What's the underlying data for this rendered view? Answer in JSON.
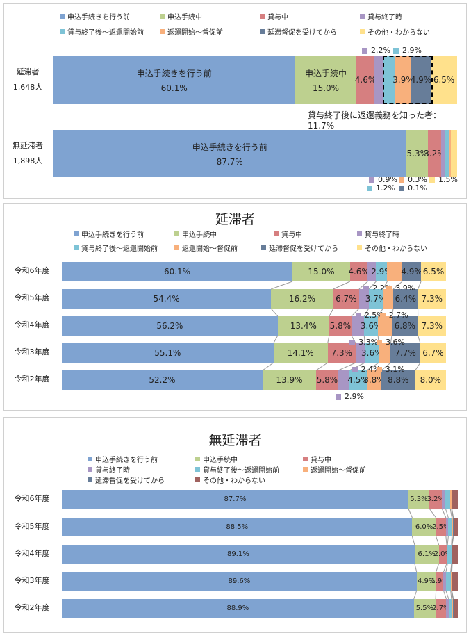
{
  "colors": [
    "#7fa3d1",
    "#bdd08f",
    "#d67f80",
    "#a896c4",
    "#7ec3d6",
    "#f8b07c",
    "#677d99",
    "#ffe18c",
    "#a0625f"
  ],
  "legend": [
    "申込手続きを行う前",
    "申込手続中",
    "貸与中",
    "貸与終了時",
    "貸与終了後～返還開始前",
    "返還開始～督促前",
    "延滞督促を受けてから",
    "その他・わからない"
  ],
  "chart_data": [
    {
      "type": "bar",
      "orientation": "horizontal-stacked-100",
      "categories": [
        "延滞者 1,648人",
        "無延滞者 1,898人"
      ],
      "category_lines": [
        [
          "延滞者",
          "1,648人"
        ],
        [
          "無延滞者",
          "1,898人"
        ]
      ],
      "series_names": [
        "申込手続きを行う前",
        "申込手続中",
        "貸与中",
        "貸与終了時",
        "貸与終了後～返還開始前",
        "返還開始～督促前",
        "延滞督促を受けてから",
        "その他・わからない"
      ],
      "values": [
        [
          60.1,
          15.0,
          4.6,
          2.2,
          2.9,
          3.9,
          4.9,
          6.5
        ],
        [
          87.7,
          5.3,
          3.2,
          0.9,
          1.2,
          0.3,
          0.1,
          1.5
        ]
      ],
      "annotation": "貸与終了後に返還義務を知った者：11.7%"
    },
    {
      "type": "bar",
      "orientation": "horizontal-stacked-100",
      "title": "延滞者",
      "categories": [
        "令和6年度",
        "令和5年度",
        "令和4年度",
        "令和3年度",
        "令和2年度"
      ],
      "series_names": [
        "申込手続きを行う前",
        "申込手続中",
        "貸与中",
        "貸与終了時",
        "貸与終了後～返還開始前",
        "返還開始～督促前",
        "延滞督促を受けてから",
        "その他・わからない"
      ],
      "values": [
        [
          60.1,
          15.0,
          4.6,
          2.2,
          2.9,
          3.9,
          4.9,
          6.5
        ],
        [
          54.4,
          16.2,
          6.7,
          2.5,
          3.7,
          2.7,
          6.4,
          7.3
        ],
        [
          56.2,
          13.4,
          5.8,
          3.3,
          3.6,
          3.6,
          6.8,
          7.3
        ],
        [
          55.1,
          14.1,
          7.3,
          2.4,
          3.6,
          3.1,
          7.7,
          6.7
        ],
        [
          52.2,
          13.9,
          5.8,
          2.9,
          4.5,
          3.8,
          8.8,
          8.0
        ]
      ]
    },
    {
      "type": "bar",
      "orientation": "horizontal-stacked-100",
      "title": "無延滞者",
      "categories": [
        "令和6年度",
        "令和5年度",
        "令和4年度",
        "令和3年度",
        "令和2年度"
      ],
      "series_names": [
        "申込手続きを行う前",
        "申込手続中",
        "貸与中",
        "貸与終了時",
        "貸与終了後～返還開始前",
        "返還開始～督促前",
        "延滞督促を受けてから",
        "その他・わからない"
      ],
      "values": [
        [
          87.7,
          5.3,
          3.2,
          0.9,
          1.2,
          0.3,
          0.1,
          1.5
        ],
        [
          88.5,
          6.0,
          2.5,
          0.6,
          0.9,
          0.3,
          0.1,
          1.1
        ],
        [
          89.1,
          6.1,
          2.0,
          0.2,
          1.0,
          0.1,
          0.1,
          1.4
        ],
        [
          89.6,
          4.9,
          1.9,
          0.6,
          1.2,
          0.2,
          0.1,
          1.5
        ],
        [
          88.9,
          5.5,
          2.7,
          0.6,
          0.7,
          0.4,
          0.1,
          1.1
        ]
      ],
      "labeled_series": [
        "申込手続きを行う前",
        "申込手続中",
        "貸与中"
      ]
    }
  ]
}
